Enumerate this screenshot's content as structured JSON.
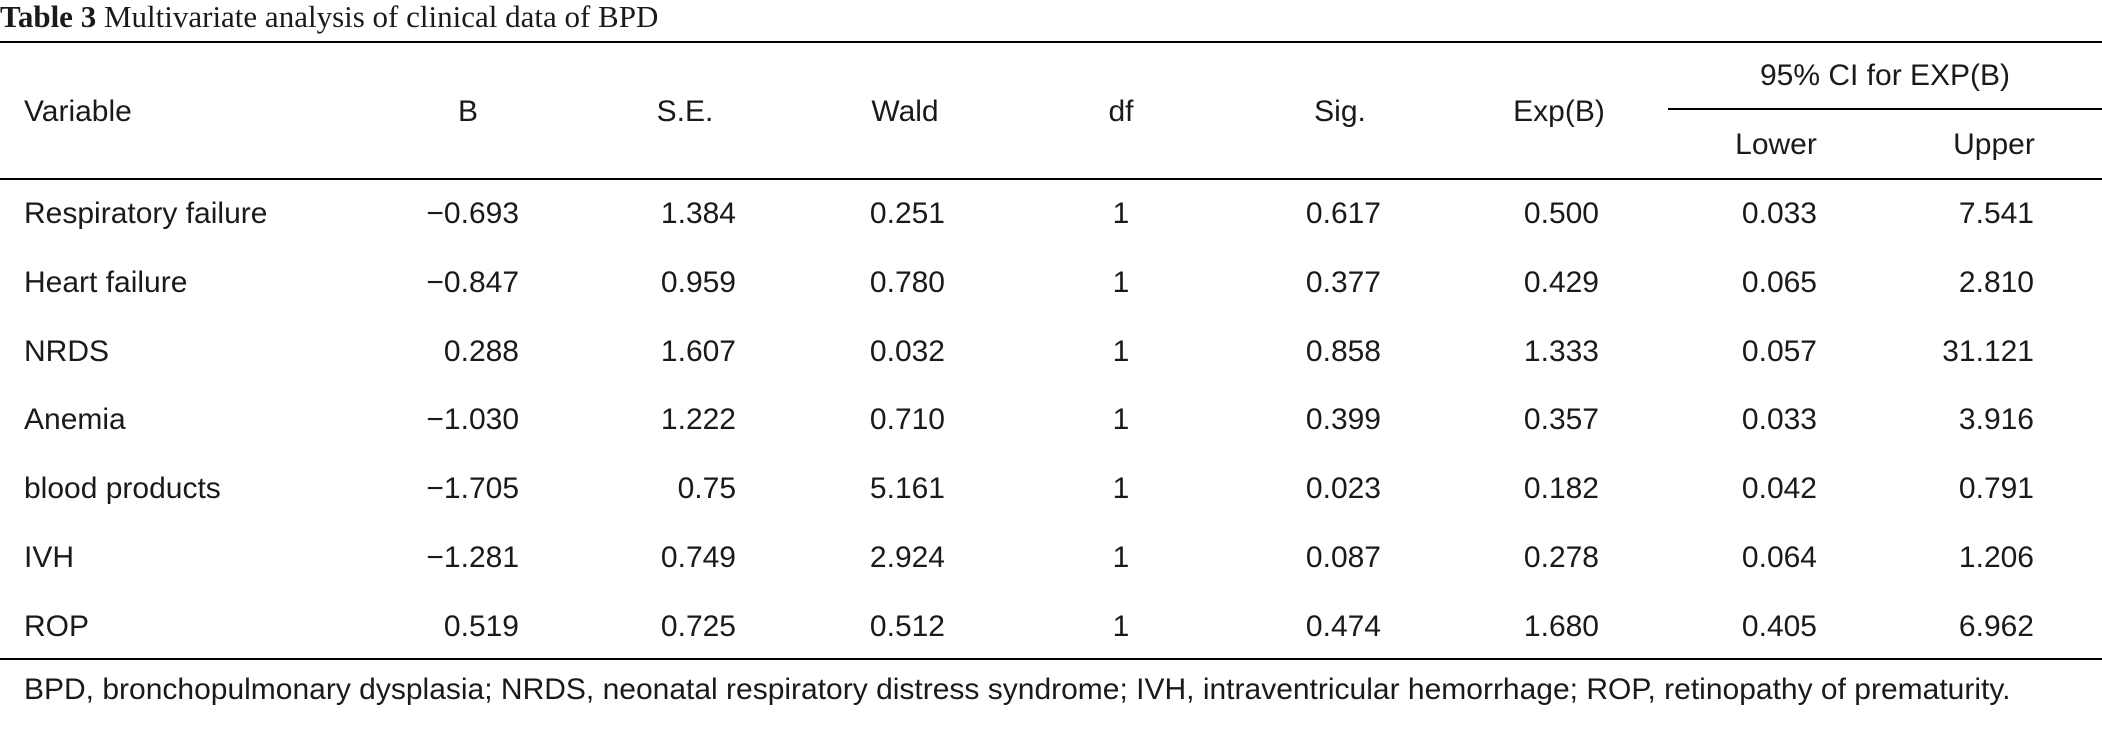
{
  "caption": {
    "label": "Table 3",
    "title": "Multivariate analysis of clinical data of BPD"
  },
  "header": {
    "variable": "Variable",
    "b": "B",
    "se": "S.E.",
    "wald": "Wald",
    "df": "df",
    "sig": "Sig.",
    "expb": "Exp(B)",
    "ci_group": "95% CI for EXP(B)",
    "lower": "Lower",
    "upper": "Upper"
  },
  "rows": [
    {
      "variable": "Respiratory failure",
      "b": "−0.693",
      "se": "1.384",
      "wald": "0.251",
      "df": "1",
      "sig": "0.617",
      "expb": "0.500",
      "lower": "0.033",
      "upper": "7.541"
    },
    {
      "variable": "Heart failure",
      "b": "−0.847",
      "se": "0.959",
      "wald": "0.780",
      "df": "1",
      "sig": "0.377",
      "expb": "0.429",
      "lower": "0.065",
      "upper": "2.810"
    },
    {
      "variable": "NRDS",
      "b": "0.288",
      "se": "1.607",
      "wald": "0.032",
      "df": "1",
      "sig": "0.858",
      "expb": "1.333",
      "lower": "0.057",
      "upper": "31.121"
    },
    {
      "variable": "Anemia",
      "b": "−1.030",
      "se": "1.222",
      "wald": "0.710",
      "df": "1",
      "sig": "0.399",
      "expb": "0.357",
      "lower": "0.033",
      "upper": "3.916"
    },
    {
      "variable": "blood products",
      "b": "−1.705",
      "se": "0.75",
      "wald": "5.161",
      "df": "1",
      "sig": "0.023",
      "expb": "0.182",
      "lower": "0.042",
      "upper": "0.791"
    },
    {
      "variable": "IVH",
      "b": "−1.281",
      "se": "0.749",
      "wald": "2.924",
      "df": "1",
      "sig": "0.087",
      "expb": "0.278",
      "lower": "0.064",
      "upper": "1.206"
    },
    {
      "variable": "ROP",
      "b": "0.519",
      "se": "0.725",
      "wald": "0.512",
      "df": "1",
      "sig": "0.474",
      "expb": "1.680",
      "lower": "0.405",
      "upper": "6.962"
    }
  ],
  "footnote": "BPD, bronchopulmonary dysplasia; NRDS, neonatal respiratory distress syndrome; IVH, intraventricular hemorrhage; ROP, retinopathy of prematurity."
}
